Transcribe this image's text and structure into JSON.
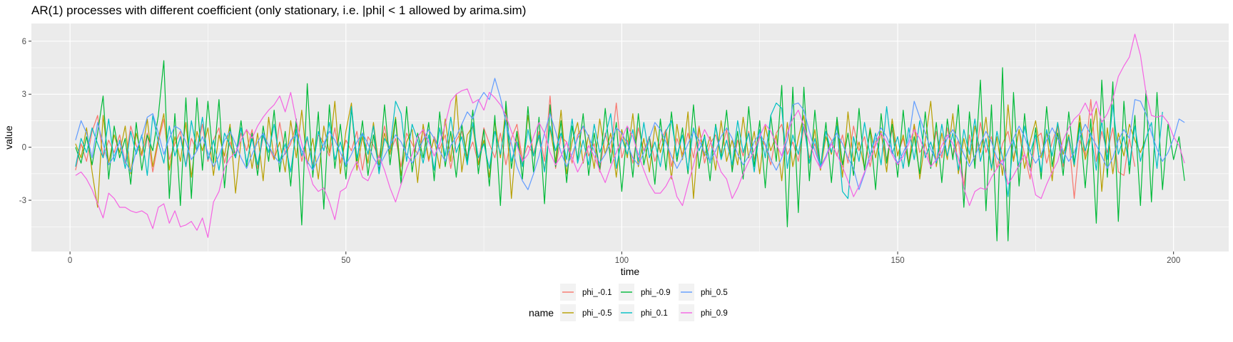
{
  "chart_data": {
    "type": "line",
    "title": "AR(1) processes with different coefficient (only stationary, i.e. |phi| < 1 allowed by arima.sim)",
    "xlabel": "time",
    "ylabel": "value",
    "xlim": [
      -7,
      210
    ],
    "ylim": [
      -5.9,
      7.0
    ],
    "x_ticks": [
      0,
      50,
      100,
      150,
      200
    ],
    "x_minor_ticks": [
      25,
      75,
      125,
      175
    ],
    "y_ticks": [
      -3,
      0,
      3,
      6
    ],
    "y_tick_labels": [
      "-3",
      "0",
      "3",
      "6"
    ],
    "y_minor_ticks": [
      -4.5,
      -1.5,
      1.5,
      4.5
    ],
    "background": "#ebebeb",
    "grid": true,
    "legend": {
      "title": "name",
      "position": "bottom",
      "columns": 3
    },
    "series": [
      {
        "name": "phi_-0.1",
        "color": "#F8766D",
        "values": [
          -1.3,
          0.2,
          -0.8,
          0.9,
          1.8,
          -0.6,
          0.4,
          -0.3,
          0.7,
          -0.9,
          1.2,
          0.1,
          -0.5,
          0.8,
          -1.4,
          0.3,
          1.6,
          -0.7,
          0.2,
          0.9,
          -1.1,
          0.5,
          -0.2,
          1.3,
          -0.8,
          0.4,
          1.1,
          -0.9,
          0.3,
          -0.6,
          0.8,
          -0.2,
          1.0,
          -1.2,
          0.6,
          0.1,
          -0.7,
          1.4,
          -0.4,
          0.2,
          1.3,
          -0.8,
          0.5,
          -1.0,
          0.7,
          0.3,
          -0.5,
          1.1,
          -0.9,
          0.4,
          -0.2,
          0.9,
          -1.3,
          0.6,
          0.1,
          -0.6,
          1.2,
          -0.3,
          0.5,
          -1.1,
          0.8,
          0.2,
          -0.4,
          1.0,
          -0.8,
          0.6,
          -0.1,
          0.7,
          -1.2,
          0.4,
          0.9,
          -0.5,
          0.3,
          -0.9,
          1.1,
          0.2,
          -0.6,
          0.8,
          -1.0,
          0.5,
          1.3,
          -0.7,
          0.1,
          -0.4,
          0.9,
          -0.8,
          2.9,
          -1.2,
          0.6,
          0.3,
          -0.9,
          0.7,
          1.2,
          -0.5,
          0.2,
          -1.4,
          0.8,
          -0.3,
          2.5,
          -0.6,
          0.4,
          -0.9,
          1.1,
          -0.2,
          0.6,
          -0.8,
          0.3,
          1.0,
          -1.1,
          0.5,
          -0.4,
          0.8,
          -0.6,
          1.2,
          -0.9,
          0.2,
          0.7,
          -0.3,
          1.0,
          -1.2,
          0.4,
          -0.5,
          0.9,
          -0.7,
          0.6,
          0.1,
          -1.0,
          0.8,
          1.3,
          -0.4,
          0.3,
          -0.8,
          1.1,
          -0.6,
          0.2,
          -1.3,
          0.9,
          0.4,
          -0.5,
          0.7,
          -0.9,
          1.2,
          -0.2,
          0.6,
          -1.1,
          0.3,
          0.8,
          -0.7,
          1.0,
          -0.4,
          0.5,
          -0.9,
          1.3,
          -0.3,
          0.2,
          -1.0,
          0.9,
          -0.6,
          1.1,
          -0.5,
          0.4,
          -2.2,
          0.7,
          -0.8,
          1.4,
          -0.3,
          0.6,
          -1.2,
          0.2,
          0.9,
          -0.7,
          1.0,
          -0.4,
          -1.8,
          0.5,
          0.8,
          -0.9,
          0.3,
          1.2,
          -1.1,
          0.6,
          -2.9,
          0.4,
          -0.5,
          2.7,
          -0.8,
          0.9,
          -0.3,
          1.1,
          -1.4,
          -1.6,
          0.5,
          -1.1
        ]
      },
      {
        "name": "phi_-0.5",
        "color": "#B79F00",
        "values": [
          0.2,
          -0.6,
          1.1,
          -1.4,
          -3.4,
          1.8,
          -0.9,
          0.7,
          -0.3,
          1.2,
          -1.5,
          0.8,
          -0.4,
          1.6,
          -1.1,
          0.5,
          1.9,
          -1.3,
          0.6,
          -0.8,
          1.4,
          -1.7,
          0.9,
          -0.2,
          1.1,
          -1.6,
          0.7,
          -0.5,
          1.3,
          -2.6,
          0.4,
          1.0,
          -1.2,
          0.8,
          -1.9,
          1.7,
          -0.7,
          0.3,
          -1.4,
          1.5,
          -0.6,
          2.1,
          -1.0,
          0.5,
          -1.8,
          1.2,
          -0.3,
          2.6,
          -1.5,
          0.9,
          2.5,
          -1.3,
          0.6,
          -0.9,
          1.4,
          -1.1,
          0.8,
          -0.4,
          1.7,
          -1.6,
          0.3,
          1.0,
          -2.0,
          1.3,
          -0.7,
          0.5,
          -1.2,
          1.6,
          -0.8,
          3.0,
          -1.4,
          0.7,
          1.2,
          -1.0,
          0.4,
          -1.7,
          1.5,
          -0.6,
          2.2,
          -2.9,
          0.9,
          -1.1,
          1.8,
          -0.5,
          0.6,
          -1.3,
          1.1,
          -0.8,
          2.1,
          -1.5,
          0.3,
          1.4,
          -0.9,
          0.7,
          -1.2,
          1.6,
          -0.4,
          0.8,
          -1.7,
          1.0,
          -0.6,
          1.9,
          -1.1,
          0.5,
          -1.4,
          1.2,
          -0.3,
          0.9,
          -1.8,
          1.3,
          -0.7,
          2.0,
          -2.9,
          1.1,
          -0.5,
          0.6,
          -1.3,
          1.5,
          -0.8,
          0.4,
          -1.0,
          1.7,
          -0.6,
          0.9,
          -1.5,
          1.2,
          -0.2,
          0.7,
          -1.9,
          1.4,
          -1.1,
          0.5,
          1.8,
          -0.9,
          1.0,
          -1.3,
          0.6,
          -0.4,
          1.5,
          -1.7,
          2.0,
          -0.8,
          0.3,
          -1.2,
          1.1,
          -0.6,
          0.9,
          -1.4,
          1.6,
          -0.5,
          0.7,
          -1.0,
          1.3,
          -1.8,
          0.4,
          2.6,
          -1.1,
          0.8,
          -0.7,
          1.9,
          -1.5,
          0.5,
          -0.9,
          1.2,
          -0.3,
          1.7,
          -1.3,
          0.6,
          -1.6,
          2.4,
          -0.8,
          1.0,
          -1.2,
          0.3,
          1.5,
          -0.6,
          0.9,
          -1.9,
          1.4,
          -0.4,
          0.7,
          -1.1,
          1.8,
          -0.7,
          0.5,
          2.2,
          -2.5,
          1.1,
          -1.5,
          0.8,
          -0.5,
          1.3,
          0.4,
          -0.3,
          0.5
        ]
      },
      {
        "name": "phi_-0.9",
        "color": "#00BA38",
        "values": [
          0.0,
          -0.9,
          0.6,
          -1.0,
          0.8,
          2.9,
          -1.8,
          1.2,
          -0.6,
          0.5,
          -2.1,
          1.4,
          -1.3,
          0.7,
          -0.2,
          1.8,
          4.9,
          -2.9,
          1.9,
          -3.3,
          2.8,
          -2.9,
          2.8,
          -1.3,
          2.6,
          -0.9,
          2.7,
          -2.3,
          1.1,
          -0.6,
          1.5,
          -1.1,
          0.8,
          -1.6,
          1.2,
          -0.8,
          2.1,
          -1.4,
          0.9,
          -2.2,
          1.6,
          -4.4,
          3.6,
          -1.7,
          2.0,
          -3.5,
          2.4,
          -1.2,
          1.3,
          -1.8,
          2.2,
          -0.9,
          1.5,
          -1.6,
          0.7,
          -1.3,
          2.4,
          -1.0,
          1.6,
          -2.1,
          2.3,
          -1.4,
          0.8,
          -0.6,
          1.4,
          -1.9,
          2.0,
          -1.1,
          0.9,
          -1.7,
          1.3,
          -0.8,
          2.1,
          -1.5,
          1.0,
          -2.2,
          1.8,
          -3.3,
          2.6,
          -1.2,
          0.9,
          -1.8,
          2.3,
          -1.4,
          1.7,
          -3.2,
          2.4,
          -1.1,
          1.5,
          -2.0,
          1.2,
          -0.7,
          1.9,
          -1.6,
          0.8,
          -1.3,
          2.2,
          -0.9,
          1.4,
          -2.5,
          1.1,
          -1.7,
          1.9,
          -1.0,
          0.6,
          -2.1,
          1.6,
          -1.3,
          2.0,
          -0.8,
          1.1,
          -1.5,
          2.4,
          -1.2,
          0.7,
          -1.9,
          1.3,
          -0.6,
          2.1,
          -1.4,
          0.9,
          -1.8,
          2.3,
          -1.1,
          1.5,
          -2.3,
          1.8,
          -0.8,
          3.5,
          -4.5,
          3.4,
          -3.7,
          3.4,
          -1.9,
          2.1,
          -1.2,
          1.4,
          -2.0,
          1.7,
          -1.0,
          0.8,
          -1.6,
          2.2,
          -1.3,
          1.0,
          -2.4,
          1.9,
          -0.9,
          1.3,
          -1.7,
          2.1,
          -1.1,
          0.6,
          -1.5,
          2.0,
          -1.2,
          1.4,
          -2.0,
          1.6,
          -0.7,
          2.4,
          -3.4,
          2.0,
          -1.2,
          3.8,
          -3.6,
          2.4,
          -5.3,
          4.5,
          -5.3,
          3.1,
          -2.2,
          1.9,
          -1.3,
          1.1,
          -1.8,
          2.3,
          -1.1,
          0.8,
          -1.6,
          2.0,
          -0.9,
          1.4,
          -2.3,
          1.6,
          -4.3,
          3.8,
          -1.7,
          3.7,
          -4.2,
          2.6,
          -1.5,
          1.8,
          -3.3,
          3.2,
          -3.1,
          3.1,
          -2.4,
          1.3,
          -0.7,
          0.6,
          -1.9
        ]
      },
      {
        "name": "phi_0.1",
        "color": "#00BFC4",
        "values": [
          -1.1,
          0.5,
          -0.3,
          1.1,
          0.2,
          -0.6,
          1.6,
          -0.8,
          0.4,
          -1.2,
          0.9,
          -0.4,
          0.7,
          -1.6,
          1.8,
          0.3,
          -0.9,
          1.2,
          -0.5,
          0.6,
          -1.1,
          1.5,
          -0.2,
          1.7,
          -0.7,
          0.4,
          -1.3,
          0.8,
          0.1,
          -0.6,
          1.1,
          -0.9,
          0.5,
          -1.0,
          0.7,
          -0.3,
          1.3,
          -0.8,
          0.2,
          -1.4,
          1.0,
          -0.5,
          0.6,
          -1.2,
          0.9,
          -0.2,
          1.4,
          -0.7,
          0.3,
          -1.1,
          2.3,
          -0.6,
          0.8,
          -0.4,
          1.2,
          -1.5,
          0.5,
          -0.1,
          2.6,
          1.9,
          -0.8,
          1.3,
          0.4,
          -0.9,
          0.7,
          -1.3,
          1.1,
          -0.5,
          1.7,
          -0.3,
          0.6,
          -1.0,
          1.4,
          -0.6,
          0.2,
          -1.2,
          0.9,
          -0.4,
          1.5,
          -0.8,
          0.3,
          -1.1,
          1.0,
          -0.5,
          0.7,
          -1.4,
          1.2,
          -0.2,
          0.8,
          -0.7,
          1.6,
          -0.9,
          0.4,
          -1.0,
          1.3,
          -0.3,
          0.6,
          1.9,
          -1.2,
          0.5,
          -0.4,
          1.0,
          -0.8,
          1.4,
          -0.6,
          0.3,
          -1.1,
          0.9,
          1.5,
          -0.5,
          0.7,
          -1.3,
          1.1,
          -0.2,
          0.6,
          -0.9,
          1.2,
          -0.7,
          0.4,
          -1.0,
          1.5,
          -0.3,
          0.8,
          -1.4,
          1.0,
          -0.6,
          1.8,
          2.5,
          2.2,
          -1.2,
          0.7,
          -0.4,
          1.3,
          -0.9,
          0.5,
          -1.1,
          0.9,
          -0.3,
          1.2,
          -2.5,
          -2.9,
          0.6,
          -0.8,
          1.4,
          -0.5,
          0.8,
          -1.0,
          2.3,
          -0.4,
          0.6,
          -1.2,
          1.1,
          -0.7,
          1.5,
          -0.6,
          0.3,
          -0.9,
          1.3,
          -0.5,
          0.8,
          -1.3,
          1.0,
          -0.4,
          1.6,
          -0.8,
          0.5,
          -1.2,
          0.9,
          -0.6,
          -2.8,
          0.4,
          -1.1,
          1.2,
          -0.3,
          0.7,
          -1.4,
          1.0,
          -0.5,
          1.4,
          -0.9,
          0.6,
          -1.0,
          1.1,
          -0.2,
          0.8,
          -1.3,
          1.5,
          -0.7,
          2.4,
          -0.4,
          0.6,
          -1.0,
          1.2,
          -0.8,
          0.5,
          1.4,
          -1.2,
          2.0
        ]
      },
      {
        "name": "phi_0.5",
        "color": "#619CFF",
        "values": [
          0.4,
          1.5,
          0.8,
          -0.6,
          1.4,
          0.2,
          -1.0,
          -0.5,
          0.3,
          -0.8,
          -1.4,
          -0.2,
          0.6,
          1.7,
          1.9,
          0.8,
          -0.4,
          0.5,
          1.2,
          1.0,
          0.3,
          -0.7,
          -0.2,
          0.6,
          -0.3,
          -1.1,
          -0.5,
          0.4,
          0.9,
          0.2,
          -0.6,
          -1.2,
          -0.4,
          0.3,
          0.8,
          0.1,
          -0.5,
          -0.9,
          -0.3,
          0.4,
          0.7,
          -0.2,
          -0.8,
          -1.3,
          -0.6,
          0.2,
          0.9,
          0.4,
          -0.3,
          -1.0,
          -0.4,
          0.3,
          0.8,
          0.2,
          -0.6,
          -1.1,
          -0.5,
          0.1,
          0.7,
          0.3,
          -0.4,
          -0.9,
          -0.3,
          0.4,
          1.0,
          0.5,
          -0.2,
          -0.8,
          0.1,
          0.6,
          1.3,
          2.0,
          1.6,
          2.6,
          3.1,
          2.7,
          3.9,
          2.8,
          1.4,
          0.2,
          -1.1,
          -1.9,
          -2.4,
          -1.5,
          -0.5,
          0.8,
          1.9,
          0.9,
          -0.3,
          -1.1,
          -0.4,
          0.5,
          1.2,
          0.6,
          -0.2,
          -0.9,
          -0.4,
          0.3,
          1.1,
          0.8,
          0.2,
          -0.6,
          -1.0,
          -0.3,
          0.5,
          1.4,
          1.0,
          0.3,
          -0.5,
          -1.2,
          -0.6,
          0.2,
          0.9,
          0.4,
          -0.3,
          -0.8,
          -0.2,
          0.6,
          1.1,
          0.5,
          -0.4,
          -1.0,
          -0.5,
          0.3,
          0.8,
          0.2,
          -0.7,
          -1.3,
          -0.6,
          0.4,
          2.4,
          2.5,
          2.1,
          0.9,
          -0.2,
          -1.1,
          -0.5,
          0.3,
          0.8,
          0.2,
          -0.6,
          -1.2,
          -2.4,
          -1.5,
          -0.4,
          0.5,
          1.1,
          0.6,
          -0.2,
          -0.9,
          -0.3,
          0.4,
          2.6,
          1.7,
          0.8,
          -0.1,
          -0.8,
          -0.3,
          0.5,
          1.0,
          0.4,
          -0.4,
          -1.1,
          -0.5,
          0.2,
          0.9,
          0.3,
          -0.6,
          -1.0,
          -0.2,
          0.5,
          1.2,
          0.6,
          -0.3,
          -0.9,
          -0.4,
          0.4,
          1.1,
          0.5,
          -0.2,
          -0.8,
          -0.3,
          0.6,
          1.3,
          0.7,
          0.1,
          -0.5,
          -1.2,
          -0.6,
          0.4,
          1.0,
          0.5,
          2.7,
          2.6,
          1.9,
          0.8,
          -0.1,
          -0.8,
          -0.3,
          0.5,
          1.6,
          1.4
        ]
      },
      {
        "name": "phi_0.9",
        "color": "#F564E3",
        "values": [
          -1.6,
          -1.4,
          -1.8,
          -2.4,
          -3.2,
          -4.0,
          -2.6,
          -2.9,
          -3.4,
          -3.4,
          -3.6,
          -3.7,
          -3.6,
          -3.8,
          -4.6,
          -3.4,
          -3.2,
          -4.3,
          -3.6,
          -4.5,
          -4.4,
          -4.2,
          -4.7,
          -4.0,
          -5.1,
          -3.1,
          -2.5,
          -1.2,
          -0.6,
          -0.3,
          0.4,
          1.0,
          0.5,
          1.2,
          1.7,
          2.1,
          2.4,
          2.9,
          2.0,
          3.1,
          1.5,
          0.2,
          -1.0,
          -2.1,
          -2.5,
          -2.3,
          -3.1,
          -4.1,
          -2.5,
          -2.3,
          -1.4,
          -0.8,
          -1.7,
          -1.9,
          -1.2,
          -0.5,
          -1.3,
          -2.3,
          -3.1,
          -2.1,
          -1.2,
          -0.4,
          0.6,
          1.0,
          0.3,
          -0.5,
          0.2,
          1.3,
          2.6,
          3.0,
          3.2,
          3.3,
          2.5,
          2.7,
          2.1,
          3.1,
          2.8,
          2.4,
          1.8,
          0.9,
          0.1,
          -0.8,
          -0.4,
          0.6,
          1.4,
          0.8,
          -0.3,
          -1.0,
          -0.5,
          0.3,
          -0.6,
          -1.4,
          -0.8,
          0.1,
          -0.5,
          -1.3,
          -2.0,
          -1.1,
          -0.3,
          0.5,
          1.2,
          0.6,
          -0.4,
          -1.3,
          -2.1,
          -2.6,
          -2.6,
          -2.2,
          -1.6,
          -2.8,
          -3.3,
          -2.1,
          -1.0,
          0.2,
          1.0,
          0.4,
          -0.5,
          -1.4,
          -1.8,
          -2.9,
          -2.3,
          -1.5,
          -0.8,
          -0.2,
          0.6,
          1.3,
          0.9,
          0.2,
          -0.5,
          0.8,
          1.6,
          2.1,
          1.2,
          0.3,
          -0.6,
          -1.2,
          -0.6,
          0.2,
          -0.4,
          -1.1,
          -1.9,
          -2.8,
          -2.2,
          -1.4,
          -0.7,
          0.1,
          0.8,
          0.3,
          -0.4,
          -1.0,
          -0.5,
          0.2,
          1.0,
          0.5,
          -0.3,
          -1.1,
          -0.7,
          0.1,
          0.7,
          0.2,
          -0.6,
          -2.3,
          -3.3,
          -2.5,
          -2.3,
          -2.4,
          -1.7,
          -1.2,
          -0.7,
          -2.1,
          -1.6,
          -1.0,
          -0.4,
          -1.2,
          -2.7,
          -2.9,
          -2.1,
          -1.4,
          -0.8,
          0.4,
          1.1,
          1.6,
          1.9,
          2.5,
          1.8,
          2.6,
          1.4,
          1.9,
          2.7,
          4.0,
          4.6,
          5.1,
          6.4,
          5.2,
          3.1,
          1.8,
          1.7,
          1.8,
          1.4,
          0.6,
          0.1,
          -0.9
        ]
      }
    ]
  }
}
